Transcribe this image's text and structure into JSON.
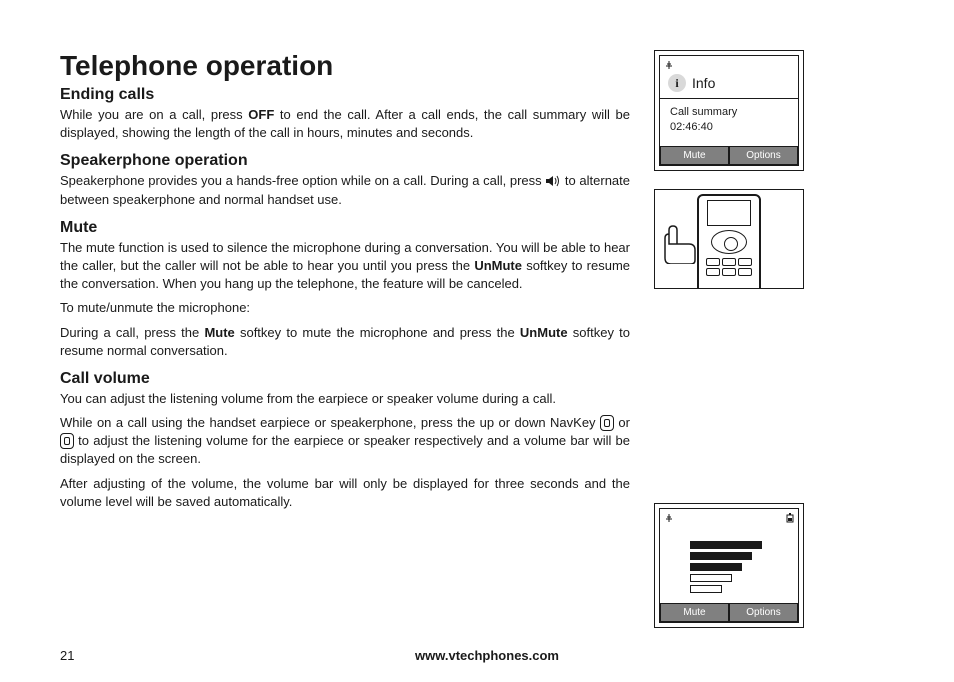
{
  "page": {
    "number": "21",
    "footer_url": "www.vtechphones.com",
    "title": "Telephone operation"
  },
  "sections": {
    "ending": {
      "title": "Ending calls",
      "p1_a": "While you are on a call, press ",
      "p1_bold": "OFF",
      "p1_b": " to end the call. After  a call ends, the call summary will be displayed, showing the length of the call in hours, minutes and seconds."
    },
    "speaker": {
      "title": "Speakerphone operation",
      "p1_a": "Speakerphone provides you a hands-free option while on a call. During a call, press ",
      "p1_b": " to alternate between speakerphone and normal handset use."
    },
    "mute": {
      "title": "Mute",
      "p1_a": "The mute function is used to silence the microphone during a conversation. You will be able to hear the caller, but the caller will not be able to hear you until you press the ",
      "p1_bold": "UnMute",
      "p1_b": " softkey to resume the conversation. When you hang up the telephone, the feature will be canceled.",
      "p2": "To mute/unmute the microphone:",
      "p3_a": "During a call, press the ",
      "p3_bold1": "Mute",
      "p3_b": " softkey to mute the microphone and press the ",
      "p3_bold2": "UnMute",
      "p3_c": " softkey to resume normal conversation."
    },
    "volume": {
      "title": "Call volume",
      "p1": "You can adjust the listening volume from the earpiece or speaker volume during a call.",
      "p2_a": "While on a call using the handset earpiece or speakerphone, press the up or down NavKey ",
      "p2_b": " or ",
      "p2_c": " to adjust the listening volume for the earpiece or speaker respectively and a volume bar will be displayed on the screen.",
      "p3": "After adjusting of the volume, the volume bar will only be displayed for three seconds and the volume level will be saved automatically."
    }
  },
  "screens": {
    "info": {
      "icon_letter": "i",
      "label": "Info",
      "line1": "Call summary",
      "line2": "02:46:40",
      "softkeys": {
        "left": "Mute",
        "right": "Options"
      }
    },
    "volume": {
      "bars": [
        {
          "width": 32,
          "filled": false
        },
        {
          "width": 42,
          "filled": false
        },
        {
          "width": 52,
          "filled": true
        },
        {
          "width": 62,
          "filled": true
        },
        {
          "width": 72,
          "filled": true
        }
      ],
      "softkeys": {
        "left": "Mute",
        "right": "Options"
      }
    }
  },
  "icons": {
    "speaker_icon_name": "speaker-icon",
    "nav_up_icon_name": "nav-up-icon",
    "nav_down_icon_name": "nav-down-icon"
  },
  "colors": {
    "text": "#1a1a1a",
    "softkey_bg": "#808080",
    "softkey_text": "#ffffff",
    "info_icon_bg": "#d9d9d9"
  }
}
